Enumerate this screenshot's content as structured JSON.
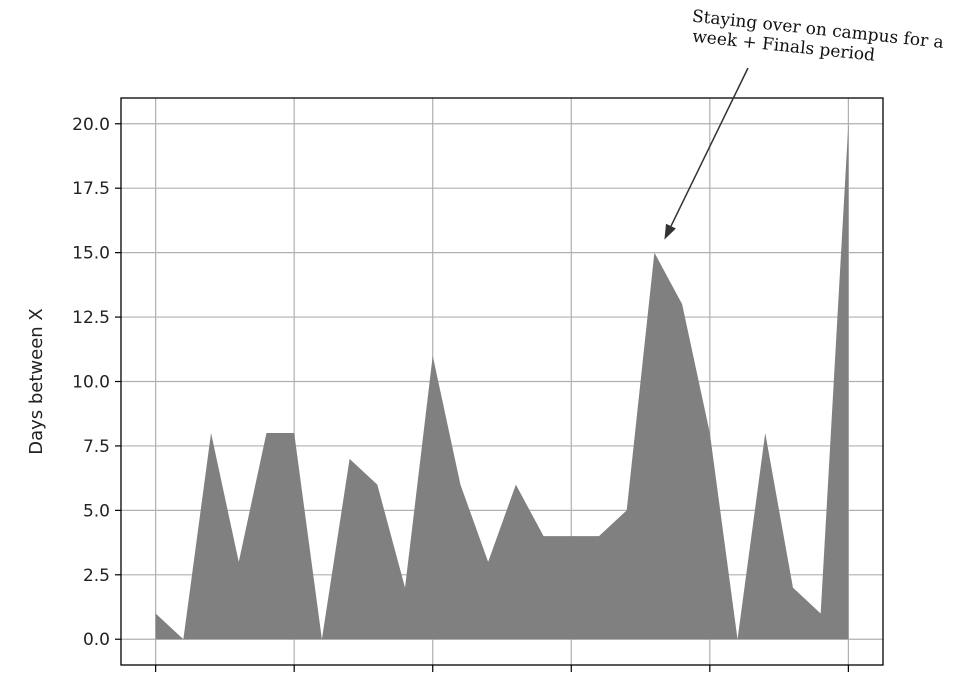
{
  "chart_data": {
    "type": "area",
    "title": "",
    "xlabel": "",
    "ylabel": "Days between X",
    "x": [
      0,
      1,
      2,
      3,
      4,
      5,
      6,
      7,
      8,
      9,
      10,
      11,
      12,
      13,
      14,
      15,
      16,
      17,
      18,
      19,
      20,
      21,
      22,
      23,
      24,
      25
    ],
    "values": [
      1,
      0,
      8,
      3,
      8,
      8,
      0,
      7,
      6,
      2,
      11,
      6,
      3,
      6,
      4,
      4,
      4,
      5,
      15,
      13,
      8,
      0,
      8,
      2,
      1,
      20
    ],
    "ylim": [
      -1,
      21
    ],
    "xlim": [
      -1.25,
      26.25
    ],
    "yticks": [
      0.0,
      2.5,
      5.0,
      7.5,
      10.0,
      12.5,
      15.0,
      17.5,
      20.0
    ],
    "ytick_labels": [
      "0.0",
      "2.5",
      "5.0",
      "7.5",
      "10.0",
      "12.5",
      "15.0",
      "17.5",
      "20.0"
    ],
    "xticks": [
      0,
      5,
      10,
      15,
      20,
      25
    ],
    "grid": true,
    "fill_color": "#808080",
    "annotation": {
      "lines": [
        "Staying over on campus for a",
        "week + Finals period"
      ],
      "point_index": 18
    }
  }
}
